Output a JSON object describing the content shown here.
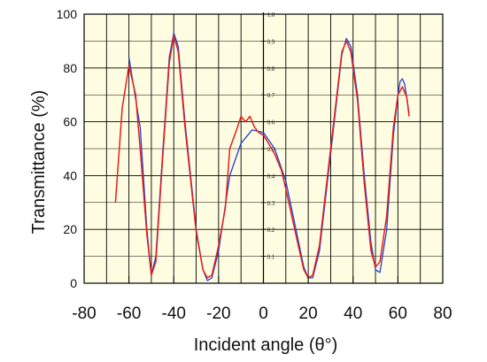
{
  "chart_data": {
    "type": "line",
    "title": "",
    "xlabel": "Incident angle (θ°)",
    "ylabel": "Transmittance (%)",
    "xlim": [
      -80,
      80
    ],
    "ylim": [
      0,
      100
    ],
    "x_ticks": [
      "-80",
      "-60",
      "-40",
      "-20",
      "0",
      "20",
      "40",
      "60",
      "80"
    ],
    "y_ticks": [
      "0",
      "20",
      "40",
      "60",
      "80",
      "100"
    ],
    "inner_axis": {
      "ticks": [
        "0.1",
        "0.2",
        "0.3",
        "0.4",
        "0.5",
        "0.6",
        "0.7",
        "0.8",
        "0.9",
        "1.0"
      ]
    },
    "grid": true,
    "legend": "none",
    "series": [
      {
        "color": "#1f3fd6",
        "points": [
          [
            -60,
            84
          ],
          [
            -55,
            58
          ],
          [
            -52,
            20
          ],
          [
            -50,
            3
          ],
          [
            -48,
            10
          ],
          [
            -45,
            48
          ],
          [
            -42,
            84
          ],
          [
            -40,
            93
          ],
          [
            -38,
            88
          ],
          [
            -35,
            60
          ],
          [
            -30,
            20
          ],
          [
            -27,
            5
          ],
          [
            -25,
            1
          ],
          [
            -23,
            2
          ],
          [
            -20,
            12
          ],
          [
            -15,
            40
          ],
          [
            -10,
            52
          ],
          [
            -5,
            57
          ],
          [
            0,
            56
          ],
          [
            5,
            50
          ],
          [
            10,
            38
          ],
          [
            15,
            18
          ],
          [
            18,
            6
          ],
          [
            20,
            2
          ],
          [
            22,
            2
          ],
          [
            25,
            12
          ],
          [
            30,
            48
          ],
          [
            35,
            85
          ],
          [
            37,
            91
          ],
          [
            39,
            88
          ],
          [
            42,
            70
          ],
          [
            45,
            40
          ],
          [
            48,
            15
          ],
          [
            50,
            5
          ],
          [
            52,
            4
          ],
          [
            55,
            20
          ],
          [
            58,
            55
          ],
          [
            60,
            70
          ],
          [
            61,
            75
          ],
          [
            62,
            76
          ],
          [
            63,
            74
          ],
          [
            65,
            63
          ]
        ]
      },
      {
        "color": "#e3201b",
        "points": [
          [
            -66,
            30
          ],
          [
            -63,
            65
          ],
          [
            -60,
            81
          ],
          [
            -57,
            70
          ],
          [
            -55,
            50
          ],
          [
            -52,
            18
          ],
          [
            -50,
            3
          ],
          [
            -48,
            8
          ],
          [
            -45,
            46
          ],
          [
            -42,
            82
          ],
          [
            -40,
            92
          ],
          [
            -38,
            86
          ],
          [
            -35,
            58
          ],
          [
            -30,
            19
          ],
          [
            -27,
            5
          ],
          [
            -25,
            2
          ],
          [
            -23,
            3
          ],
          [
            -20,
            14
          ],
          [
            -17,
            28
          ],
          [
            -15,
            50
          ],
          [
            -12,
            57
          ],
          [
            -10,
            62
          ],
          [
            -8,
            60
          ],
          [
            -6,
            62
          ],
          [
            -4,
            58
          ],
          [
            -2,
            56
          ],
          [
            0,
            55
          ],
          [
            3,
            51
          ],
          [
            5,
            48
          ],
          [
            8,
            42
          ],
          [
            10,
            35
          ],
          [
            15,
            16
          ],
          [
            18,
            5
          ],
          [
            20,
            2
          ],
          [
            22,
            3
          ],
          [
            25,
            14
          ],
          [
            30,
            50
          ],
          [
            35,
            86
          ],
          [
            37,
            90
          ],
          [
            39,
            86
          ],
          [
            42,
            68
          ],
          [
            45,
            37
          ],
          [
            48,
            12
          ],
          [
            50,
            6
          ],
          [
            52,
            8
          ],
          [
            55,
            25
          ],
          [
            58,
            58
          ],
          [
            60,
            70
          ],
          [
            62,
            73
          ],
          [
            64,
            69
          ],
          [
            65,
            62
          ]
        ]
      }
    ]
  }
}
